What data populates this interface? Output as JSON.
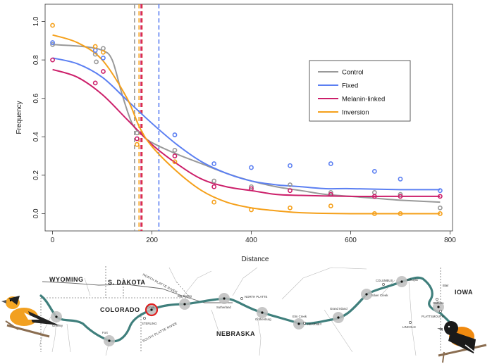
{
  "chart_data": {
    "type": "scatter",
    "title": "",
    "xlabel": "Distance",
    "ylabel": "Frequency",
    "xlim": [
      -15,
      805
    ],
    "ylim": [
      -0.09,
      1.09
    ],
    "xticks": [
      0,
      200,
      400,
      600,
      800
    ],
    "yticks": [
      0.0,
      0.2,
      0.4,
      0.6,
      0.8,
      1.0
    ],
    "tick_labels_x": [
      "0",
      "200",
      "400",
      "600",
      "800"
    ],
    "tick_labels_y": [
      "0.0",
      "0.2",
      "0.4",
      "0.6",
      "0.8",
      "1.0"
    ],
    "legend_position": "right-center",
    "series": [
      {
        "name": "Control",
        "color": "#999999",
        "center": 162,
        "dashed_center_line": 165,
        "points": [
          [
            0,
            0.88
          ],
          [
            86,
            0.83
          ],
          [
            88,
            0.79
          ],
          [
            102,
            0.86
          ],
          [
            170,
            0.42
          ],
          [
            246,
            0.33
          ],
          [
            325,
            0.17
          ],
          [
            400,
            0.14
          ],
          [
            478,
            0.15
          ],
          [
            560,
            0.11
          ],
          [
            648,
            0.11
          ],
          [
            700,
            0.1
          ],
          [
            780,
            0.03
          ]
        ],
        "curve": [
          [
            0,
            0.88
          ],
          [
            60,
            0.87
          ],
          [
            100,
            0.85
          ],
          [
            120,
            0.8
          ],
          [
            140,
            0.62
          ],
          [
            160,
            0.47
          ],
          [
            180,
            0.41
          ],
          [
            200,
            0.37
          ],
          [
            250,
            0.31
          ],
          [
            300,
            0.26
          ],
          [
            350,
            0.21
          ],
          [
            400,
            0.17
          ],
          [
            450,
            0.14
          ],
          [
            500,
            0.12
          ],
          [
            550,
            0.1
          ],
          [
            600,
            0.09
          ],
          [
            650,
            0.08
          ],
          [
            700,
            0.07
          ],
          [
            780,
            0.06
          ]
        ]
      },
      {
        "name": "Fixed",
        "color": "#5b7ff2",
        "center": 214,
        "dashed_center_line": 214,
        "points": [
          [
            0,
            0.89
          ],
          [
            86,
            0.85
          ],
          [
            102,
            0.81
          ],
          [
            246,
            0.41
          ],
          [
            325,
            0.26
          ],
          [
            400,
            0.24
          ],
          [
            478,
            0.25
          ],
          [
            560,
            0.26
          ],
          [
            648,
            0.22
          ],
          [
            700,
            0.18
          ],
          [
            780,
            0.12
          ]
        ],
        "curve": [
          [
            0,
            0.81
          ],
          [
            50,
            0.78
          ],
          [
            100,
            0.71
          ],
          [
            150,
            0.59
          ],
          [
            200,
            0.47
          ],
          [
            250,
            0.36
          ],
          [
            300,
            0.27
          ],
          [
            350,
            0.21
          ],
          [
            400,
            0.17
          ],
          [
            450,
            0.15
          ],
          [
            500,
            0.14
          ],
          [
            550,
            0.13
          ],
          [
            600,
            0.13
          ],
          [
            700,
            0.125
          ],
          [
            780,
            0.125
          ]
        ]
      },
      {
        "name": "Melanin-linked",
        "color": "#cc1f6a",
        "center": 176,
        "dashed_center_line": 178,
        "points": [
          [
            0,
            0.8
          ],
          [
            86,
            0.68
          ],
          [
            102,
            0.74
          ],
          [
            170,
            0.39
          ],
          [
            246,
            0.3
          ],
          [
            325,
            0.14
          ],
          [
            400,
            0.13
          ],
          [
            478,
            0.12
          ],
          [
            560,
            0.1
          ],
          [
            648,
            0.09
          ],
          [
            700,
            0.09
          ],
          [
            780,
            0.09
          ]
        ],
        "curve": [
          [
            0,
            0.75
          ],
          [
            50,
            0.71
          ],
          [
            100,
            0.62
          ],
          [
            150,
            0.49
          ],
          [
            200,
            0.36
          ],
          [
            250,
            0.26
          ],
          [
            300,
            0.18
          ],
          [
            350,
            0.14
          ],
          [
            400,
            0.12
          ],
          [
            450,
            0.1
          ],
          [
            500,
            0.095
          ],
          [
            600,
            0.09
          ],
          [
            700,
            0.09
          ],
          [
            780,
            0.09
          ]
        ]
      },
      {
        "name": "Inversion",
        "color": "#f5a01a",
        "center": 172,
        "dashed_center_line": 174,
        "points": [
          [
            0,
            0.98
          ],
          [
            86,
            0.87
          ],
          [
            102,
            0.84
          ],
          [
            170,
            0.36
          ],
          [
            246,
            0.27
          ],
          [
            325,
            0.06
          ],
          [
            400,
            0.02
          ],
          [
            478,
            0.03
          ],
          [
            560,
            0.04
          ],
          [
            648,
            0.0
          ],
          [
            700,
            0.0
          ],
          [
            780,
            0.0
          ]
        ],
        "curve": [
          [
            0,
            0.93
          ],
          [
            50,
            0.89
          ],
          [
            100,
            0.8
          ],
          [
            150,
            0.6
          ],
          [
            175,
            0.45
          ],
          [
            200,
            0.35
          ],
          [
            250,
            0.22
          ],
          [
            300,
            0.12
          ],
          [
            350,
            0.06
          ],
          [
            400,
            0.03
          ],
          [
            450,
            0.015
          ],
          [
            500,
            0.005
          ],
          [
            600,
            0.0
          ],
          [
            780,
            0.0
          ]
        ]
      }
    ],
    "extra_dashed_lines": [
      {
        "x": 180,
        "color": "#e03030"
      }
    ]
  },
  "map": {
    "state_labels": {
      "wyoming": "WYOMING",
      "s_dakota": "S. DAKOTA",
      "colorado": "COLORADO",
      "nebraska": "NEBRASKA",
      "iowa": "IOWA"
    },
    "river_labels": {
      "north_platte_river": "NORTH PLATTE RIVER",
      "south_platte_river": "SOUTH PLATTE RIVER"
    },
    "sites": [
      "Greeley",
      "Fort",
      "Crook",
      "Big Spring",
      "Sutherland",
      "Gothenburg",
      "Elm Creek",
      "Grand Island",
      "Silver Creek",
      "Schuyler",
      "Blair"
    ],
    "towns": [
      "STERLING",
      "NORTH PLATTE",
      "KEARNEY",
      "COLUMBUS",
      "OMAHA",
      "PLATTSMOUTH",
      "LINCOLN"
    ],
    "colors": {
      "river": "#3f7f7c",
      "site": "#bdbdbd",
      "highlight": "#e02020"
    }
  }
}
